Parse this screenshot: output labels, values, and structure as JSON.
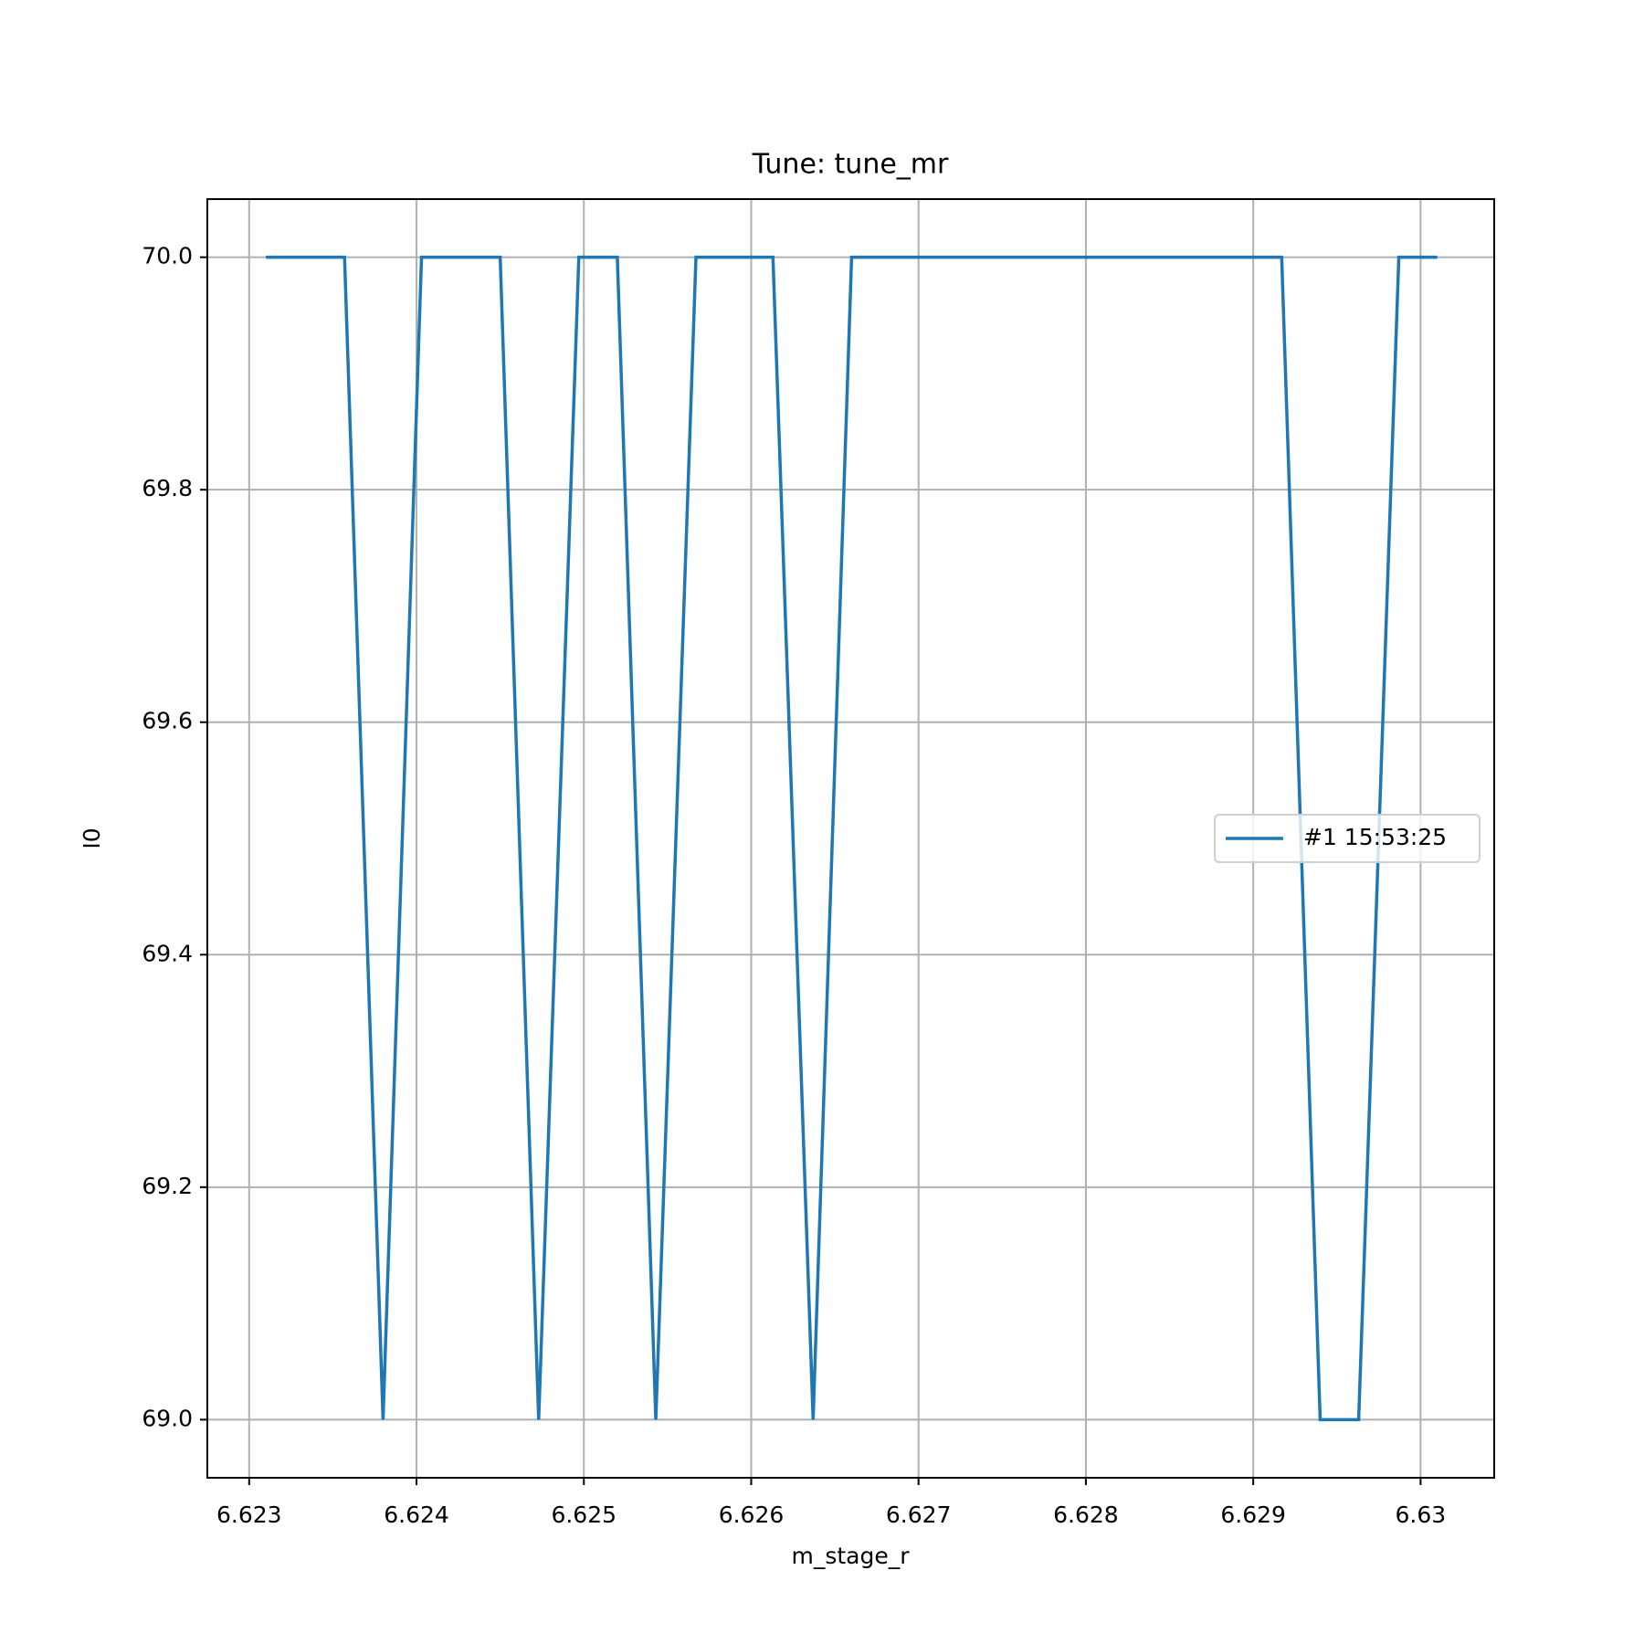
{
  "chart_data": {
    "type": "line",
    "title": "Tune: tune_mr",
    "x_label": "m_stage_r",
    "y_label": "I0",
    "x": [
      6.6231,
      6.62333,
      6.62357,
      6.6238,
      6.62403,
      6.62427,
      6.6245,
      6.62473,
      6.62497,
      6.6252,
      6.62543,
      6.62567,
      6.6259,
      6.62613,
      6.62637,
      6.6266,
      6.62683,
      6.62707,
      6.6273,
      6.62753,
      6.62777,
      6.628,
      6.62823,
      6.62847,
      6.6287,
      6.62893,
      6.62917,
      6.6294,
      6.62963,
      6.62987,
      6.6301
    ],
    "series": [
      {
        "name": "#1 15:53:25",
        "color": "#1f77b4",
        "values": [
          70,
          70,
          70,
          69,
          70,
          70,
          70,
          69,
          70,
          70,
          69,
          70,
          70,
          70,
          69,
          70,
          70,
          70,
          70,
          70,
          70,
          70,
          70,
          70,
          70,
          70,
          70,
          69,
          69,
          70,
          70
        ]
      }
    ],
    "xlim": [
      6.62275,
      6.63044
    ],
    "ylim": [
      68.95,
      70.05
    ],
    "xticks": [
      6.623,
      6.624,
      6.625,
      6.626,
      6.627,
      6.628,
      6.629,
      6.63
    ],
    "yticks": [
      {
        "value": 69,
        "label": "69.0"
      },
      69.2,
      69.4,
      69.6,
      69.8,
      {
        "value": 70,
        "label": "70.0"
      }
    ],
    "grid": true,
    "legend": "center right"
  }
}
